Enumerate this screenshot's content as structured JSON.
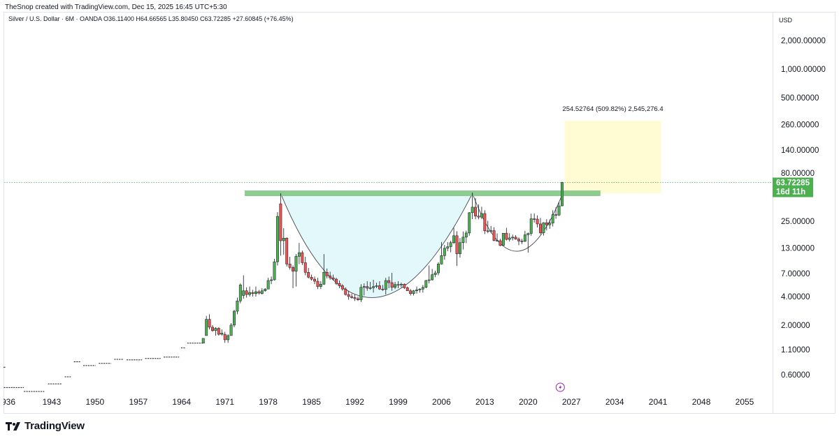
{
  "header": {
    "credit": "TheSnop created with TradingView.com, Dec 15, 2025 16:45 UTC+5:30",
    "symbol_line": "Silver / U.S. Dollar · 6M · OANDA  O36.11400  H64.66565  L35.80450  C63.72285  +27.60845 (+76.45%)",
    "currency": "USD"
  },
  "footer": {
    "brand": "TradingView"
  },
  "colors": {
    "up": "#26a69a",
    "up_fill": "#4caf50",
    "down": "#ef5350",
    "resistance": "#81c784",
    "cup_fill": "#e0f7fa",
    "target_box": "#fff9c4",
    "price_label": "#4caf50"
  },
  "chart_data": {
    "type": "candlestick",
    "title": "Silver / U.S. Dollar · 6M · OANDA",
    "y_scale": "log",
    "y_ticks": [
      {
        "value": 2000,
        "label": "2,000.00000"
      },
      {
        "value": 1000,
        "label": "1,000.00000"
      },
      {
        "value": 500,
        "label": "500.00000"
      },
      {
        "value": 260,
        "label": "260.00000"
      },
      {
        "value": 140,
        "label": "140.00000"
      },
      {
        "value": 80,
        "label": "80.00000"
      },
      {
        "value": 25,
        "label": "25.00000"
      },
      {
        "value": 13,
        "label": "13.00000"
      },
      {
        "value": 7,
        "label": "7.00000"
      },
      {
        "value": 4,
        "label": "4.00000"
      },
      {
        "value": 2,
        "label": "2.00000"
      },
      {
        "value": 1.1,
        "label": "1.10000"
      },
      {
        "value": 0.6,
        "label": "0.60000"
      }
    ],
    "x_ticks": [
      "936",
      "1943",
      "1950",
      "1957",
      "1964",
      "1971",
      "1978",
      "1985",
      "1992",
      "1999",
      "2006",
      "2013",
      "2020",
      "2027",
      "2034",
      "2041",
      "2048",
      "2055"
    ],
    "last_price": {
      "value": 63.72285,
      "label": "63.72285",
      "countdown": "16d 11h"
    },
    "resistance_level": 49,
    "target_box": {
      "from_year": 2025.9,
      "to_year": 2041.5,
      "low": 49,
      "high": 285
    },
    "measure_label": "254.52764 (509.82%) 2,545,276.4",
    "cup_patterns": [
      {
        "from_year": 1980,
        "bottom_year": 1994,
        "to_year": 2011,
        "rim": 49,
        "bottom": 3.9
      },
      {
        "from_year": 2011,
        "bottom_year": 2018,
        "to_year": 2025.6,
        "rim": 49,
        "bottom": 12
      }
    ],
    "flat_segments": [
      {
        "from": 1934.5,
        "to": 1938.5,
        "value": 0.44
      },
      {
        "from": 1938.5,
        "to": 1941.8,
        "value": 0.4
      },
      {
        "from": 1942.4,
        "to": 1944.6,
        "value": 0.48
      },
      {
        "from": 1945.1,
        "to": 1946.1,
        "value": 0.57
      },
      {
        "from": 1946.6,
        "to": 1947.6,
        "value": 0.82
      },
      {
        "from": 1948.1,
        "to": 1950.1,
        "value": 0.75
      },
      {
        "from": 1950.6,
        "to": 1952.6,
        "value": 0.79
      },
      {
        "from": 1953.1,
        "to": 1954.6,
        "value": 0.87
      },
      {
        "from": 1955.1,
        "to": 1957.6,
        "value": 0.86
      },
      {
        "from": 1958.1,
        "to": 1960.6,
        "value": 0.89
      },
      {
        "from": 1961.1,
        "to": 1963.6,
        "value": 0.92
      },
      {
        "from": 1963.9,
        "to": 1964.6,
        "value": 1.15
      },
      {
        "from": 1964.9,
        "to": 1967.6,
        "value": 1.29
      }
    ],
    "candles": [
      {
        "t": 1967.5,
        "o": 1.29,
        "h": 1.45,
        "l": 1.29,
        "c": 1.45
      },
      {
        "t": 1968,
        "o": 1.55,
        "h": 2.5,
        "l": 1.55,
        "c": 2.3
      },
      {
        "t": 1968.5,
        "o": 2.3,
        "h": 2.6,
        "l": 1.8,
        "c": 1.9
      },
      {
        "t": 1969,
        "o": 1.9,
        "h": 2.0,
        "l": 1.7,
        "c": 1.75
      },
      {
        "t": 1969.5,
        "o": 1.75,
        "h": 1.9,
        "l": 1.55,
        "c": 1.85
      },
      {
        "t": 1970,
        "o": 1.85,
        "h": 1.9,
        "l": 1.55,
        "c": 1.6
      },
      {
        "t": 1970.5,
        "o": 1.6,
        "h": 1.8,
        "l": 1.55,
        "c": 1.65
      },
      {
        "t": 1971,
        "o": 1.6,
        "h": 1.7,
        "l": 1.3,
        "c": 1.4
      },
      {
        "t": 1971.5,
        "o": 1.4,
        "h": 1.6,
        "l": 1.3,
        "c": 1.55
      },
      {
        "t": 1972,
        "o": 1.55,
        "h": 2.1,
        "l": 1.55,
        "c": 2.0
      },
      {
        "t": 1972.5,
        "o": 2.0,
        "h": 2.9,
        "l": 1.9,
        "c": 2.8
      },
      {
        "t": 1973,
        "o": 2.8,
        "h": 3.9,
        "l": 2.6,
        "c": 3.6
      },
      {
        "t": 1973.5,
        "o": 3.6,
        "h": 5.5,
        "l": 3.4,
        "c": 5.3
      },
      {
        "t": 1974,
        "o": 4.1,
        "h": 6.7,
        "l": 3.8,
        "c": 4.6
      },
      {
        "t": 1974.5,
        "o": 4.6,
        "h": 5.0,
        "l": 3.9,
        "c": 4.2
      },
      {
        "t": 1975,
        "o": 4.2,
        "h": 5.1,
        "l": 4.0,
        "c": 4.4
      },
      {
        "t": 1975.5,
        "o": 4.4,
        "h": 4.7,
        "l": 4.0,
        "c": 4.3
      },
      {
        "t": 1976,
        "o": 4.3,
        "h": 5.1,
        "l": 4.0,
        "c": 4.5
      },
      {
        "t": 1976.5,
        "o": 4.5,
        "h": 4.7,
        "l": 4.2,
        "c": 4.35
      },
      {
        "t": 1977,
        "o": 4.3,
        "h": 4.9,
        "l": 4.2,
        "c": 4.6
      },
      {
        "t": 1977.5,
        "o": 4.6,
        "h": 4.9,
        "l": 4.5,
        "c": 4.8
      },
      {
        "t": 1978,
        "o": 4.8,
        "h": 6.3,
        "l": 4.8,
        "c": 5.9
      },
      {
        "t": 1978.5,
        "o": 5.9,
        "h": 6.5,
        "l": 5.4,
        "c": 6.0
      },
      {
        "t": 1979,
        "o": 6.0,
        "h": 10.0,
        "l": 5.9,
        "c": 9.3
      },
      {
        "t": 1979.5,
        "o": 9.3,
        "h": 31,
        "l": 8.5,
        "c": 28
      },
      {
        "t": 1980,
        "o": 38,
        "h": 49,
        "l": 10.8,
        "c": 15.5
      },
      {
        "t": 1980.5,
        "o": 15.5,
        "h": 21,
        "l": 11,
        "c": 16.5
      },
      {
        "t": 1981,
        "o": 16.5,
        "h": 16.8,
        "l": 8.3,
        "c": 8.8
      },
      {
        "t": 1981.5,
        "o": 8.8,
        "h": 10.5,
        "l": 7.7,
        "c": 8.1
      },
      {
        "t": 1982,
        "o": 8.1,
        "h": 8.5,
        "l": 4.9,
        "c": 7.4
      },
      {
        "t": 1982.5,
        "o": 7.4,
        "h": 11.2,
        "l": 5.1,
        "c": 10.6
      },
      {
        "t": 1983,
        "o": 10.6,
        "h": 14.7,
        "l": 8.8,
        "c": 11.6
      },
      {
        "t": 1983.5,
        "o": 11.6,
        "h": 12.2,
        "l": 8.6,
        "c": 9.1
      },
      {
        "t": 1984,
        "o": 9.1,
        "h": 10.5,
        "l": 6.7,
        "c": 7.2
      },
      {
        "t": 1984.5,
        "o": 7.2,
        "h": 8.0,
        "l": 6.2,
        "c": 6.4
      },
      {
        "t": 1985,
        "o": 6.4,
        "h": 6.8,
        "l": 5.9,
        "c": 6.1
      },
      {
        "t": 1985.5,
        "o": 6.1,
        "h": 6.5,
        "l": 5.4,
        "c": 5.8
      },
      {
        "t": 1986,
        "o": 5.8,
        "h": 6.3,
        "l": 4.8,
        "c": 5.1
      },
      {
        "t": 1986.5,
        "o": 5.1,
        "h": 5.8,
        "l": 4.8,
        "c": 5.4
      },
      {
        "t": 1987,
        "o": 5.4,
        "h": 11.2,
        "l": 5.3,
        "c": 7.2
      },
      {
        "t": 1987.5,
        "o": 7.2,
        "h": 7.9,
        "l": 6.2,
        "c": 6.6
      },
      {
        "t": 1988,
        "o": 6.6,
        "h": 7.3,
        "l": 6.0,
        "c": 6.3
      },
      {
        "t": 1988.5,
        "o": 6.3,
        "h": 6.8,
        "l": 5.9,
        "c": 6.1
      },
      {
        "t": 1989,
        "o": 6.1,
        "h": 6.3,
        "l": 5.3,
        "c": 5.5
      },
      {
        "t": 1989.5,
        "o": 5.5,
        "h": 5.9,
        "l": 4.9,
        "c": 5.2
      },
      {
        "t": 1990,
        "o": 5.2,
        "h": 5.4,
        "l": 4.6,
        "c": 4.8
      },
      {
        "t": 1990.5,
        "o": 4.8,
        "h": 5.0,
        "l": 4.1,
        "c": 4.2
      },
      {
        "t": 1991,
        "o": 4.2,
        "h": 4.6,
        "l": 3.7,
        "c": 4.0
      },
      {
        "t": 1991.5,
        "o": 4.0,
        "h": 4.3,
        "l": 3.8,
        "c": 3.9
      },
      {
        "t": 1992,
        "o": 3.9,
        "h": 4.2,
        "l": 3.6,
        "c": 3.8
      },
      {
        "t": 1992.5,
        "o": 3.8,
        "h": 4.0,
        "l": 3.6,
        "c": 3.7
      },
      {
        "t": 1993,
        "o": 3.7,
        "h": 5.4,
        "l": 3.5,
        "c": 5.0
      },
      {
        "t": 1993.5,
        "o": 5.0,
        "h": 5.5,
        "l": 4.1,
        "c": 5.1
      },
      {
        "t": 1994,
        "o": 5.1,
        "h": 5.8,
        "l": 4.6,
        "c": 4.9
      },
      {
        "t": 1994.5,
        "o": 4.9,
        "h": 5.7,
        "l": 4.7,
        "c": 4.95
      },
      {
        "t": 1995,
        "o": 4.95,
        "h": 6.0,
        "l": 4.4,
        "c": 5.1
      },
      {
        "t": 1995.5,
        "o": 5.1,
        "h": 5.6,
        "l": 4.9,
        "c": 5.2
      },
      {
        "t": 1996,
        "o": 5.2,
        "h": 5.8,
        "l": 4.7,
        "c": 4.8
      },
      {
        "t": 1996.5,
        "o": 4.8,
        "h": 5.3,
        "l": 4.6,
        "c": 4.75
      },
      {
        "t": 1997,
        "o": 4.75,
        "h": 6.3,
        "l": 4.2,
        "c": 5.9
      },
      {
        "t": 1997.5,
        "o": 5.9,
        "h": 6.5,
        "l": 4.9,
        "c": 5.6
      },
      {
        "t": 1998,
        "o": 5.6,
        "h": 7.1,
        "l": 4.6,
        "c": 5.0
      },
      {
        "t": 1998.5,
        "o": 5.0,
        "h": 5.7,
        "l": 4.8,
        "c": 5.35
      },
      {
        "t": 1999,
        "o": 5.35,
        "h": 5.8,
        "l": 4.9,
        "c": 5.3
      },
      {
        "t": 1999.5,
        "o": 5.3,
        "h": 5.6,
        "l": 5.0,
        "c": 5.4
      },
      {
        "t": 2000,
        "o": 5.4,
        "h": 5.5,
        "l": 4.8,
        "c": 4.95
      },
      {
        "t": 2000.5,
        "o": 4.95,
        "h": 5.1,
        "l": 4.6,
        "c": 4.6
      },
      {
        "t": 2001,
        "o": 4.6,
        "h": 4.8,
        "l": 4.1,
        "c": 4.3
      },
      {
        "t": 2001.5,
        "o": 4.3,
        "h": 4.7,
        "l": 4.1,
        "c": 4.6
      },
      {
        "t": 2002,
        "o": 4.6,
        "h": 5.1,
        "l": 4.3,
        "c": 4.7
      },
      {
        "t": 2002.5,
        "o": 4.7,
        "h": 4.9,
        "l": 4.4,
        "c": 4.8
      },
      {
        "t": 2003,
        "o": 4.8,
        "h": 5.3,
        "l": 4.4,
        "c": 5.0
      },
      {
        "t": 2003.5,
        "o": 5.0,
        "h": 6.0,
        "l": 4.9,
        "c": 5.9
      },
      {
        "t": 2004,
        "o": 5.9,
        "h": 8.5,
        "l": 5.5,
        "c": 6.0
      },
      {
        "t": 2004.5,
        "o": 6.0,
        "h": 7.8,
        "l": 5.9,
        "c": 6.8
      },
      {
        "t": 2005,
        "o": 6.8,
        "h": 7.5,
        "l": 6.4,
        "c": 7.1
      },
      {
        "t": 2005.5,
        "o": 7.1,
        "h": 9.2,
        "l": 6.7,
        "c": 8.8
      },
      {
        "t": 2006,
        "o": 8.8,
        "h": 15,
        "l": 8.7,
        "c": 10.8
      },
      {
        "t": 2006.5,
        "o": 10.8,
        "h": 14,
        "l": 9.8,
        "c": 12.9
      },
      {
        "t": 2007,
        "o": 12.9,
        "h": 15,
        "l": 12,
        "c": 13.4
      },
      {
        "t": 2007.5,
        "o": 13.4,
        "h": 15.5,
        "l": 11.7,
        "c": 14.8
      },
      {
        "t": 2008,
        "o": 14.8,
        "h": 21.2,
        "l": 14.3,
        "c": 17.5
      },
      {
        "t": 2008.5,
        "o": 17.5,
        "h": 19.5,
        "l": 8.4,
        "c": 11.3
      },
      {
        "t": 2009,
        "o": 11.3,
        "h": 16.5,
        "l": 10.3,
        "c": 14.8
      },
      {
        "t": 2009.5,
        "o": 14.8,
        "h": 19.4,
        "l": 12.5,
        "c": 16.9
      },
      {
        "t": 2010,
        "o": 16.9,
        "h": 19.8,
        "l": 14.6,
        "c": 18.7
      },
      {
        "t": 2010.5,
        "o": 18.7,
        "h": 31,
        "l": 17.5,
        "c": 30.6
      },
      {
        "t": 2011,
        "o": 30.6,
        "h": 49.8,
        "l": 26.2,
        "c": 35
      },
      {
        "t": 2011.5,
        "o": 35,
        "h": 43.5,
        "l": 26.1,
        "c": 28.2
      },
      {
        "t": 2012,
        "o": 28.2,
        "h": 37.5,
        "l": 26.1,
        "c": 27.5
      },
      {
        "t": 2012.5,
        "o": 27.5,
        "h": 35.4,
        "l": 26.2,
        "c": 30
      },
      {
        "t": 2013,
        "o": 30,
        "h": 32.5,
        "l": 18.2,
        "c": 19.7
      },
      {
        "t": 2013.5,
        "o": 19.7,
        "h": 25.1,
        "l": 18.6,
        "c": 19.5
      },
      {
        "t": 2014,
        "o": 19.5,
        "h": 22.2,
        "l": 18.6,
        "c": 19.8
      },
      {
        "t": 2014.5,
        "o": 19.8,
        "h": 21.5,
        "l": 15.3,
        "c": 15.6
      },
      {
        "t": 2015,
        "o": 15.6,
        "h": 18.5,
        "l": 15.2,
        "c": 15.5
      },
      {
        "t": 2015.5,
        "o": 15.5,
        "h": 16.2,
        "l": 13.6,
        "c": 13.8
      },
      {
        "t": 2016,
        "o": 13.8,
        "h": 18.7,
        "l": 13.7,
        "c": 18.6
      },
      {
        "t": 2016.5,
        "o": 18.6,
        "h": 21.2,
        "l": 15.6,
        "c": 16.0
      },
      {
        "t": 2017,
        "o": 16.0,
        "h": 18.6,
        "l": 15.2,
        "c": 16.6
      },
      {
        "t": 2017.5,
        "o": 16.6,
        "h": 18.0,
        "l": 15.6,
        "c": 16.9
      },
      {
        "t": 2018,
        "o": 16.9,
        "h": 17.7,
        "l": 15.9,
        "c": 16.1
      },
      {
        "t": 2018.5,
        "o": 16.1,
        "h": 16.8,
        "l": 13.9,
        "c": 15.4
      },
      {
        "t": 2019,
        "o": 15.4,
        "h": 16.2,
        "l": 14.3,
        "c": 15.3
      },
      {
        "t": 2019.5,
        "o": 15.3,
        "h": 19.7,
        "l": 15.0,
        "c": 17.9
      },
      {
        "t": 2020,
        "o": 17.9,
        "h": 18.9,
        "l": 11.6,
        "c": 18.5
      },
      {
        "t": 2020.5,
        "o": 18.5,
        "h": 29.9,
        "l": 17.5,
        "c": 26.4
      },
      {
        "t": 2021,
        "o": 26.4,
        "h": 30.1,
        "l": 24.1,
        "c": 26.2
      },
      {
        "t": 2021.5,
        "o": 26.2,
        "h": 28.7,
        "l": 21.4,
        "c": 23.3
      },
      {
        "t": 2022,
        "o": 23.3,
        "h": 26.9,
        "l": 18.1,
        "c": 18.8
      },
      {
        "t": 2022.5,
        "o": 18.8,
        "h": 24.3,
        "l": 17.6,
        "c": 24.0
      },
      {
        "t": 2023,
        "o": 24.0,
        "h": 26.1,
        "l": 19.9,
        "c": 22.8
      },
      {
        "t": 2023.5,
        "o": 22.8,
        "h": 26.0,
        "l": 20.7,
        "c": 23.8
      },
      {
        "t": 2024,
        "o": 23.8,
        "h": 32.5,
        "l": 21.9,
        "c": 29.2
      },
      {
        "t": 2024.5,
        "o": 29.2,
        "h": 34.9,
        "l": 26.4,
        "c": 28.9
      },
      {
        "t": 2025,
        "o": 28.9,
        "h": 39.5,
        "l": 28.3,
        "c": 36.11
      },
      {
        "t": 2025.5,
        "o": 36.114,
        "h": 64.66565,
        "l": 35.8045,
        "c": 63.72285
      }
    ]
  }
}
